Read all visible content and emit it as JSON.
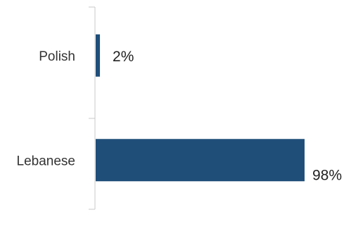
{
  "chart_data": {
    "type": "bar",
    "orientation": "horizontal",
    "categories": [
      "Polish",
      "Lebanese"
    ],
    "values": [
      2,
      98
    ],
    "value_labels": [
      "2%",
      "98%"
    ],
    "xlim": [
      0,
      100
    ],
    "grid": false,
    "legend": "none",
    "bar_color": "#1f4e79",
    "title": "",
    "xlabel": "",
    "ylabel": ""
  }
}
